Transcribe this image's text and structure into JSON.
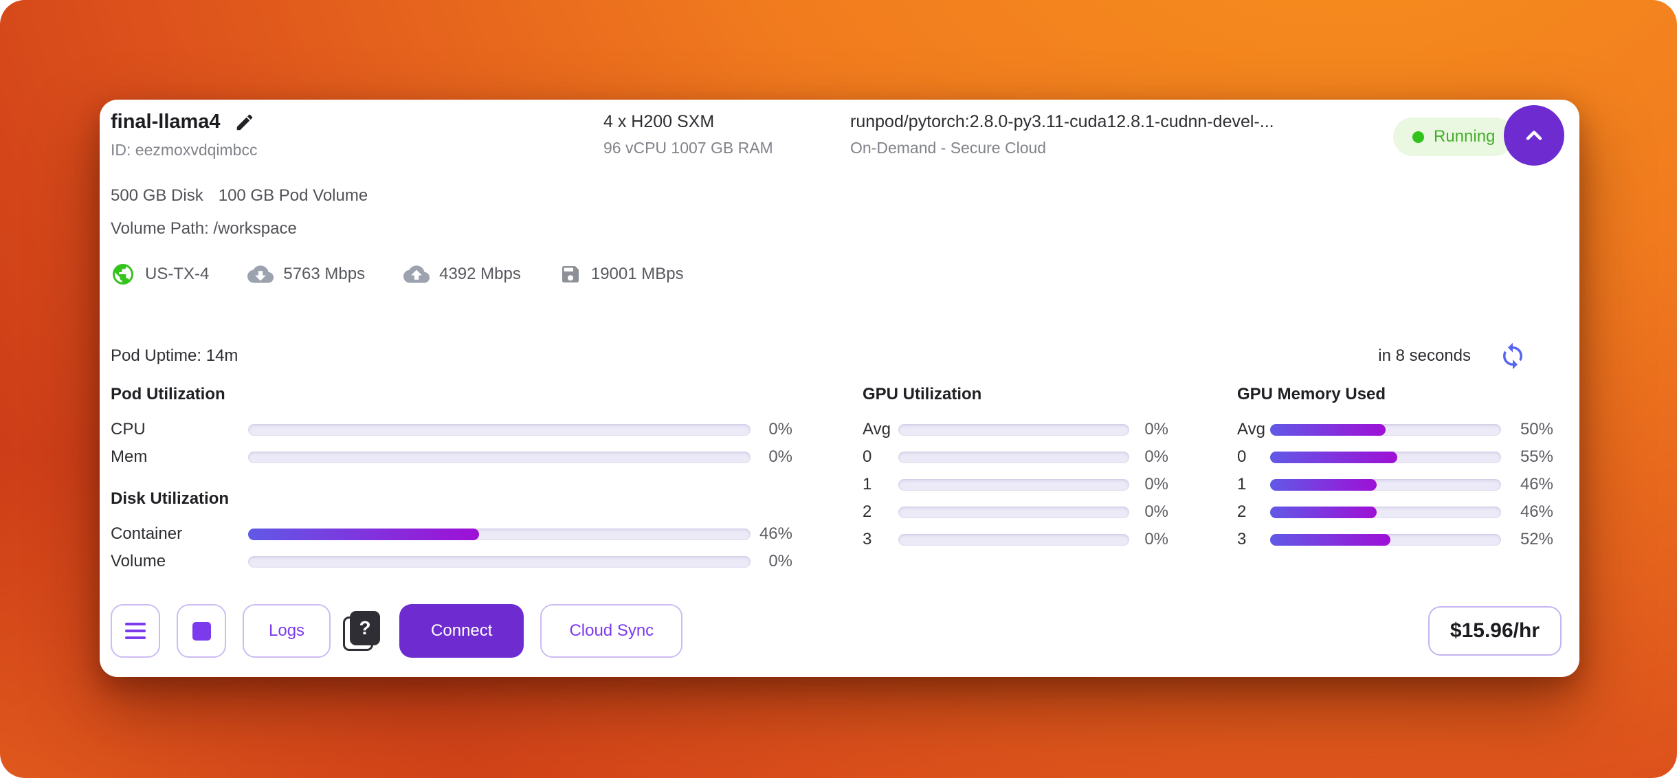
{
  "header": {
    "pod_name": "final-llama4",
    "pod_id": "ID: eezmoxvdqimbcc",
    "gpu_config": "4 x H200 SXM",
    "cpu_ram": "96 vCPU 1007 GB RAM",
    "image_name": "runpod/pytorch:2.8.0-py3.11-cuda12.8.1-cudnn-devel-...",
    "cloud_type": "On-Demand - Secure Cloud",
    "status_label": "Running"
  },
  "storage": {
    "disk": "500 GB Disk",
    "pod_volume": "100 GB Pod Volume",
    "volume_path": "Volume Path: /workspace"
  },
  "network": {
    "datacenter": "US-TX-4",
    "download_speed": "5763 Mbps",
    "upload_speed": "4392 Mbps",
    "disk_throughput": "19001 MBps"
  },
  "uptime": {
    "label": "Pod Uptime: 14m",
    "refresh_in": "in 8 seconds"
  },
  "metrics": {
    "pod_utilization": {
      "title": "Pod Utilization",
      "rows": [
        {
          "label": "CPU",
          "value": 0
        },
        {
          "label": "Mem",
          "value": 0
        }
      ]
    },
    "disk_utilization": {
      "title": "Disk Utilization",
      "rows": [
        {
          "label": "Container",
          "value": 46
        },
        {
          "label": "Volume",
          "value": 0
        }
      ]
    },
    "gpu_utilization": {
      "title": "GPU Utilization",
      "rows": [
        {
          "label": "Avg",
          "value": 0
        },
        {
          "label": "0",
          "value": 0
        },
        {
          "label": "1",
          "value": 0
        },
        {
          "label": "2",
          "value": 0
        },
        {
          "label": "3",
          "value": 0
        }
      ]
    },
    "gpu_memory": {
      "title": "GPU Memory Used",
      "rows": [
        {
          "label": "Avg",
          "value": 50
        },
        {
          "label": "0",
          "value": 55
        },
        {
          "label": "1",
          "value": 46
        },
        {
          "label": "2",
          "value": 46
        },
        {
          "label": "3",
          "value": 52
        }
      ]
    }
  },
  "footer": {
    "logs_label": "Logs",
    "help_glyph": "?",
    "connect_label": "Connect",
    "cloud_sync_label": "Cloud Sync",
    "price": "$15.96/hr"
  },
  "colors": {
    "accent_purple": "#6d2bd0",
    "button_text_purple": "#7c3aed",
    "bar_gradient_start": "#6159e6",
    "bar_gradient_end": "#9e10d6",
    "bar_track": "#edeaf7",
    "status_green": "#2fc31c",
    "status_text": "#43ae29",
    "status_bg": "#eaf8e2",
    "refresh_blue": "#5865f2",
    "bg_orange": "#f68b1e",
    "bg_red": "#bf2a14"
  }
}
